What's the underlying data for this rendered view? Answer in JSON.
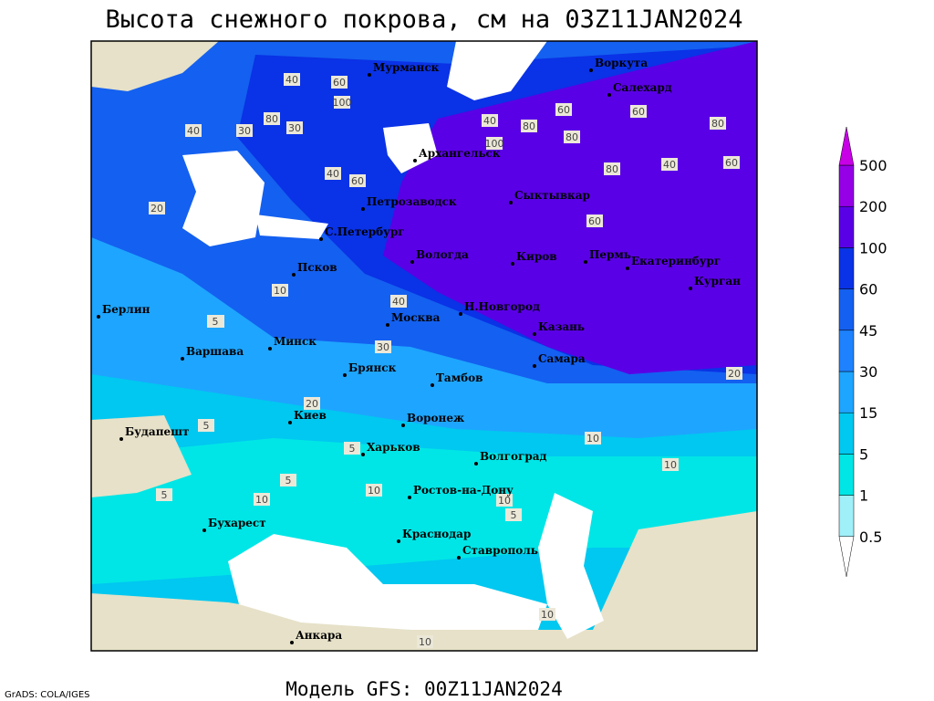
{
  "header": {
    "title": "Высота снежного покрова, см на 03Z11JAN2024"
  },
  "footer": {
    "model": "Модель GFS: 00Z11JAN2024",
    "credit": "GrADS: COLA/IGES"
  },
  "cities": [
    "Мурманск",
    "Воркута",
    "Салехард",
    "Архангельск",
    "Петрозаводск",
    "Сыктывкар",
    "С.Петербург",
    "Вологда",
    "Киров",
    "Пермь",
    "Екатеринбург",
    "Курган",
    "Псков",
    "Н.Новгород",
    "Москва",
    "Казань",
    "Берлин",
    "Минск",
    "Варшава",
    "Самара",
    "Брянск",
    "Тамбов",
    "Киев",
    "Воронеж",
    "Будапешт",
    "Харьков",
    "Волгоград",
    "Ростов-на-Дону",
    "Бухарест",
    "Краснодар",
    "Ставрополь",
    "Анкара"
  ],
  "contour_labels": [
    "40",
    "60",
    "100",
    "80",
    "40",
    "30",
    "20",
    "40",
    "60",
    "80",
    "80",
    "100",
    "60",
    "40",
    "80",
    "60",
    "80",
    "60",
    "40",
    "30",
    "10",
    "5",
    "20",
    "30",
    "40",
    "60",
    "20",
    "10",
    "5",
    "10",
    "5",
    "5",
    "10",
    "5",
    "10",
    "5",
    "10",
    "5",
    "10",
    "10"
  ],
  "legend": {
    "levels": [
      0.5,
      1,
      5,
      15,
      30,
      45,
      60,
      100,
      200,
      500
    ],
    "colors": [
      "#a0f0fa",
      "#00e6e6",
      "#00c8f0",
      "#1ea5ff",
      "#1e82ff",
      "#1460f0",
      "#0a32e6",
      "#5a00e6",
      "#9600e6"
    ],
    "over_color": "#c800e6",
    "under_color": "#ffffff"
  }
}
